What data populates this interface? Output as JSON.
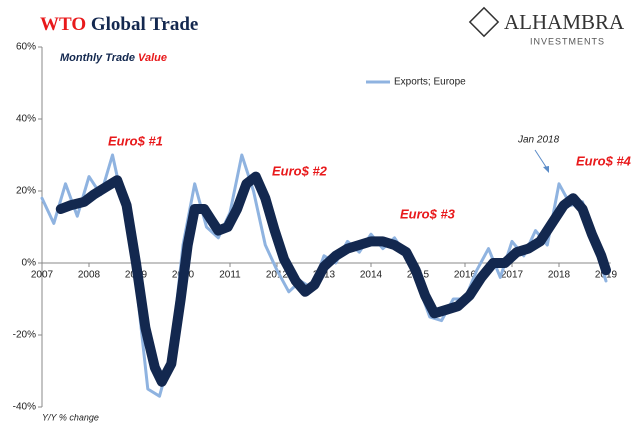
{
  "chart_data": {
    "type": "line",
    "title": [
      "WTO",
      "Global Trade"
    ],
    "subtitle": [
      "Monthly Trade",
      "Value"
    ],
    "logo": [
      "ALHAMBRA",
      "INVESTMENTS"
    ],
    "y_axis_label": "Y/Y % change",
    "annotations": [
      "Euro$ #1",
      "Euro$ #2",
      "Euro$ #3",
      "Euro$ #4",
      "Jan 2018"
    ],
    "legend": "top-center",
    "ylim": [
      -40,
      60
    ],
    "yticks": [
      {
        "value": -40,
        "label": "-40%"
      },
      {
        "value": -20,
        "label": "-20%"
      },
      {
        "value": 0,
        "label": "0%"
      },
      {
        "value": 20,
        "label": "20%"
      },
      {
        "value": 40,
        "label": "40%"
      },
      {
        "value": 60,
        "label": "60%"
      }
    ],
    "xlim": [
      2007,
      2019.1
    ],
    "xticks": [
      2007,
      2008,
      2009,
      2010,
      2011,
      2012,
      2013,
      2014,
      2015,
      2016,
      2017,
      2018,
      2019
    ],
    "series": [
      {
        "name": "Exports; Europe",
        "color": "#8fb3e0",
        "width": 3,
        "x": [
          2007,
          2007.25,
          2007.5,
          2007.75,
          2008,
          2008.25,
          2008.5,
          2008.75,
          2009,
          2009.25,
          2009.5,
          2009.75,
          2010,
          2010.25,
          2010.5,
          2010.75,
          2011,
          2011.25,
          2011.5,
          2011.75,
          2012,
          2012.25,
          2012.5,
          2012.75,
          2013,
          2013.25,
          2013.5,
          2013.75,
          2014,
          2014.25,
          2014.5,
          2014.75,
          2015,
          2015.25,
          2015.5,
          2015.75,
          2016,
          2016.25,
          2016.5,
          2016.75,
          2017,
          2017.25,
          2017.5,
          2017.75,
          2018,
          2018.25,
          2018.5,
          2018.75,
          2019
        ],
        "values": [
          18,
          11,
          22,
          13,
          24,
          19,
          30,
          15,
          -5,
          -35,
          -37,
          -25,
          5,
          22,
          10,
          7,
          14,
          30,
          20,
          5,
          -2,
          -8,
          -5,
          -7,
          2,
          0,
          6,
          3,
          8,
          4,
          7,
          2,
          -6,
          -15,
          -16,
          -10,
          -10,
          -2,
          4,
          -4,
          6,
          2,
          9,
          5,
          22,
          16,
          17,
          5,
          -5
        ]
      },
      {
        "color": "#13284f",
        "width": 10,
        "x": [
          2007.4,
          2007.6,
          2007.9,
          2008.1,
          2008.35,
          2008.6,
          2008.8,
          2009.0,
          2009.2,
          2009.4,
          2009.55,
          2009.75,
          2009.95,
          2010.1,
          2010.25,
          2010.45,
          2010.6,
          2010.75,
          2010.95,
          2011.15,
          2011.35,
          2011.55,
          2011.75,
          2011.95,
          2012.15,
          2012.4,
          2012.6,
          2012.8,
          2013.0,
          2013.25,
          2013.5,
          2013.75,
          2014.0,
          2014.25,
          2014.5,
          2014.75,
          2014.95,
          2015.15,
          2015.35,
          2015.6,
          2015.85,
          2016.1,
          2016.35,
          2016.6,
          2016.85,
          2017.1,
          2017.35,
          2017.6,
          2017.85,
          2018.1,
          2018.3,
          2018.5,
          2018.7,
          2018.9,
          2019.0
        ],
        "values": [
          15,
          16,
          17,
          19,
          21,
          23,
          16,
          0,
          -18,
          -29,
          -33,
          -28,
          -10,
          5,
          15,
          15,
          12,
          9,
          10,
          15,
          22,
          24,
          18,
          9,
          1,
          -5,
          -8,
          -6,
          -1,
          2,
          4,
          5,
          6,
          6,
          5,
          3,
          -2,
          -9,
          -14,
          -13,
          -12,
          -9,
          -4,
          0,
          0,
          3,
          4,
          6,
          11,
          16,
          18,
          15,
          8,
          2,
          -2
        ]
      }
    ]
  }
}
